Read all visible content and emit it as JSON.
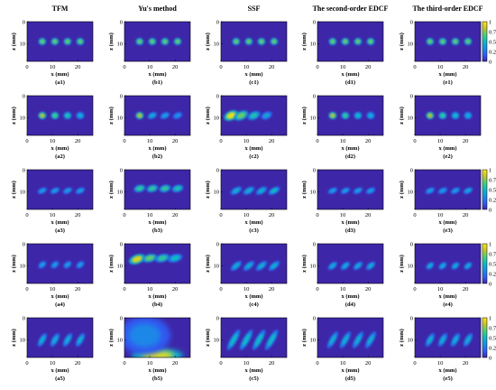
{
  "figure": {
    "column_titles": [
      "TFM",
      "Yu's method",
      "SSF",
      "The second-order EDCF",
      "The third-order EDCF"
    ],
    "panel_labels": [
      [
        "(a1)",
        "(b1)",
        "(c1)",
        "(d1)",
        "(e1)"
      ],
      [
        "(a2)",
        "(b2)",
        "(c2)",
        "(d2)",
        "(e2)"
      ],
      [
        "(a3)",
        "(b3)",
        "(c3)",
        "(d3)",
        "(e3)"
      ],
      [
        "(a4)",
        "(b4)",
        "(c4)",
        "(d4)",
        "(e4)"
      ],
      [
        "(a5)",
        "(b5)",
        "(c5)",
        "(d5)",
        "(e5)"
      ]
    ],
    "x_axis_label": "x (mm)",
    "y_axis_label": "z (mm)",
    "x_tick_labels": [
      "0",
      "10",
      "20"
    ],
    "y_tick_labels": [
      "0",
      "10"
    ],
    "colorbar_tick_labels": [
      "1",
      "0.75",
      "0.5",
      "0.25",
      "0"
    ],
    "colormap": [
      "#3e26a8",
      "#2f5ef9",
      "#1791e3",
      "#0cb9c4",
      "#47d17b",
      "#c5c428",
      "#f9e91f"
    ],
    "background_color": "#3e26a8"
  },
  "chart_data": {
    "type": "heatmap",
    "x_axis": {
      "label": "x (mm)",
      "range": [
        0,
        26
      ],
      "ticks": [
        0,
        10,
        20
      ]
    },
    "z_axis": {
      "label": "z (mm)",
      "range": [
        0,
        18
      ],
      "ticks": [
        0,
        10
      ],
      "reversed": true
    },
    "colorbar": {
      "range": [
        0,
        1
      ],
      "ticks": [
        0,
        0.25,
        0.5,
        0.75,
        1
      ]
    },
    "panels": [
      {
        "label": "(a1)",
        "spots": [
          {
            "x": 6,
            "z": 9,
            "i": 0.7,
            "w": 1.2,
            "h": 1.2,
            "tilt": 0
          },
          {
            "x": 11,
            "z": 9,
            "i": 0.7,
            "w": 1.2,
            "h": 1.2,
            "tilt": 0
          },
          {
            "x": 16,
            "z": 9,
            "i": 0.7,
            "w": 1.2,
            "h": 1.2,
            "tilt": 0
          },
          {
            "x": 21,
            "z": 9,
            "i": 0.7,
            "w": 1.2,
            "h": 1.2,
            "tilt": 0
          }
        ]
      },
      {
        "label": "(b1)",
        "spots": [
          {
            "x": 6,
            "z": 9,
            "i": 0.7,
            "w": 1.2,
            "h": 1.2,
            "tilt": 0
          },
          {
            "x": 11,
            "z": 9,
            "i": 0.7,
            "w": 1.2,
            "h": 1.2,
            "tilt": 0
          },
          {
            "x": 16,
            "z": 9,
            "i": 0.7,
            "w": 1.2,
            "h": 1.2,
            "tilt": 0
          },
          {
            "x": 21,
            "z": 9,
            "i": 0.7,
            "w": 1.2,
            "h": 1.2,
            "tilt": 0
          }
        ]
      },
      {
        "label": "(c1)",
        "spots": [
          {
            "x": 6,
            "z": 9,
            "i": 0.7,
            "w": 1.2,
            "h": 1.2,
            "tilt": 0
          },
          {
            "x": 11,
            "z": 9,
            "i": 0.7,
            "w": 1.2,
            "h": 1.2,
            "tilt": 0
          },
          {
            "x": 16,
            "z": 9,
            "i": 0.7,
            "w": 1.2,
            "h": 1.2,
            "tilt": 0
          },
          {
            "x": 21,
            "z": 9,
            "i": 0.7,
            "w": 1.2,
            "h": 1.2,
            "tilt": 0
          }
        ]
      },
      {
        "label": "(d1)",
        "spots": [
          {
            "x": 6,
            "z": 9,
            "i": 0.7,
            "w": 1.2,
            "h": 1.2,
            "tilt": 0
          },
          {
            "x": 11,
            "z": 9,
            "i": 0.7,
            "w": 1.2,
            "h": 1.2,
            "tilt": 0
          },
          {
            "x": 16,
            "z": 9,
            "i": 0.7,
            "w": 1.2,
            "h": 1.2,
            "tilt": 0
          },
          {
            "x": 21,
            "z": 9,
            "i": 0.7,
            "w": 1.2,
            "h": 1.2,
            "tilt": 0
          }
        ]
      },
      {
        "label": "(e1)",
        "spots": [
          {
            "x": 6,
            "z": 9,
            "i": 0.7,
            "w": 1.2,
            "h": 1.2,
            "tilt": 0
          },
          {
            "x": 11,
            "z": 9,
            "i": 0.7,
            "w": 1.2,
            "h": 1.2,
            "tilt": 0
          },
          {
            "x": 16,
            "z": 9,
            "i": 0.7,
            "w": 1.2,
            "h": 1.2,
            "tilt": 0
          },
          {
            "x": 21,
            "z": 9,
            "i": 0.7,
            "w": 1.2,
            "h": 1.2,
            "tilt": 0
          }
        ]
      },
      {
        "label": "(a2)",
        "spots": [
          {
            "x": 6,
            "z": 9,
            "i": 0.8,
            "w": 1.3,
            "h": 1.3,
            "tilt": 0
          },
          {
            "x": 11,
            "z": 9,
            "i": 0.65,
            "w": 1.3,
            "h": 1.3,
            "tilt": 0
          },
          {
            "x": 16,
            "z": 9,
            "i": 0.55,
            "w": 1.3,
            "h": 1.3,
            "tilt": 0
          },
          {
            "x": 21,
            "z": 9,
            "i": 0.45,
            "w": 1.3,
            "h": 1.3,
            "tilt": 0
          }
        ]
      },
      {
        "label": "(b2)",
        "spots": [
          {
            "x": 6,
            "z": 9,
            "i": 0.8,
            "w": 1.3,
            "h": 1.3,
            "tilt": 0
          },
          {
            "x": 11,
            "z": 9,
            "i": 0.45,
            "w": 1.8,
            "h": 0.9,
            "tilt": -25
          },
          {
            "x": 16,
            "z": 9,
            "i": 0.4,
            "w": 1.8,
            "h": 0.9,
            "tilt": -25
          },
          {
            "x": 21,
            "z": 9,
            "i": 0.35,
            "w": 1.8,
            "h": 0.9,
            "tilt": -25
          }
        ]
      },
      {
        "label": "(c2)",
        "spots": [
          {
            "x": 4,
            "z": 9,
            "i": 0.95,
            "w": 3,
            "h": 1.8,
            "tilt": -25
          },
          {
            "x": 8,
            "z": 9,
            "i": 0.7,
            "w": 3,
            "h": 1.6,
            "tilt": -25
          },
          {
            "x": 13,
            "z": 9,
            "i": 0.55,
            "w": 2.6,
            "h": 1.4,
            "tilt": -25
          },
          {
            "x": 18,
            "z": 9,
            "i": 0.4,
            "w": 2.2,
            "h": 1.2,
            "tilt": -25
          }
        ]
      },
      {
        "label": "(d2)",
        "spots": [
          {
            "x": 6,
            "z": 9,
            "i": 0.8,
            "w": 1.3,
            "h": 1.3,
            "tilt": 0
          },
          {
            "x": 11,
            "z": 9,
            "i": 0.6,
            "w": 1.3,
            "h": 1.3,
            "tilt": 0
          },
          {
            "x": 16,
            "z": 9,
            "i": 0.5,
            "w": 1.3,
            "h": 1.3,
            "tilt": 0
          },
          {
            "x": 21,
            "z": 9,
            "i": 0.45,
            "w": 1.3,
            "h": 1.3,
            "tilt": 0
          }
        ]
      },
      {
        "label": "(e2)",
        "spots": [
          {
            "x": 6,
            "z": 9,
            "i": 0.8,
            "w": 1.3,
            "h": 1.3,
            "tilt": 0
          },
          {
            "x": 11,
            "z": 9,
            "i": 0.6,
            "w": 1.3,
            "h": 1.3,
            "tilt": 0
          },
          {
            "x": 16,
            "z": 9,
            "i": 0.5,
            "w": 1.3,
            "h": 1.3,
            "tilt": 0
          },
          {
            "x": 21,
            "z": 9,
            "i": 0.45,
            "w": 1.3,
            "h": 1.3,
            "tilt": 0
          }
        ]
      },
      {
        "label": "(a3)",
        "spots": [
          {
            "x": 6,
            "z": 9.5,
            "i": 0.4,
            "w": 1.8,
            "h": 0.7,
            "tilt": -25
          },
          {
            "x": 11,
            "z": 9.5,
            "i": 0.4,
            "w": 1.8,
            "h": 0.7,
            "tilt": -25
          },
          {
            "x": 16,
            "z": 9.5,
            "i": 0.4,
            "w": 1.8,
            "h": 0.7,
            "tilt": -25
          },
          {
            "x": 21,
            "z": 9.5,
            "i": 0.4,
            "w": 1.8,
            "h": 0.7,
            "tilt": -25
          }
        ]
      },
      {
        "label": "(b3)",
        "spots": [
          {
            "x": 6,
            "z": 8.5,
            "i": 0.6,
            "w": 2.2,
            "h": 1.2,
            "tilt": -15
          },
          {
            "x": 11,
            "z": 8.5,
            "i": 0.6,
            "w": 2.2,
            "h": 1.2,
            "tilt": -15
          },
          {
            "x": 16,
            "z": 8.5,
            "i": 0.6,
            "w": 2.2,
            "h": 1.2,
            "tilt": -15
          },
          {
            "x": 21,
            "z": 8.5,
            "i": 0.55,
            "w": 2.2,
            "h": 1.2,
            "tilt": -15
          }
        ]
      },
      {
        "label": "(c3)",
        "spots": [
          {
            "x": 6,
            "z": 9.5,
            "i": 0.45,
            "w": 2.4,
            "h": 0.9,
            "tilt": -30
          },
          {
            "x": 11,
            "z": 9.5,
            "i": 0.45,
            "w": 2.4,
            "h": 0.9,
            "tilt": -30
          },
          {
            "x": 16,
            "z": 9.5,
            "i": 0.45,
            "w": 2.4,
            "h": 0.9,
            "tilt": -30
          },
          {
            "x": 21,
            "z": 9.5,
            "i": 0.5,
            "w": 2.4,
            "h": 0.9,
            "tilt": -30
          }
        ]
      },
      {
        "label": "(d3)",
        "spots": [
          {
            "x": 6,
            "z": 9.5,
            "i": 0.4,
            "w": 1.8,
            "h": 0.7,
            "tilt": -25
          },
          {
            "x": 11,
            "z": 9.5,
            "i": 0.4,
            "w": 1.8,
            "h": 0.7,
            "tilt": -25
          },
          {
            "x": 16,
            "z": 9.5,
            "i": 0.4,
            "w": 1.8,
            "h": 0.7,
            "tilt": -25
          },
          {
            "x": 21,
            "z": 9.5,
            "i": 0.4,
            "w": 1.8,
            "h": 0.7,
            "tilt": -25
          }
        ]
      },
      {
        "label": "(e3)",
        "spots": [
          {
            "x": 6,
            "z": 9.5,
            "i": 0.4,
            "w": 1.8,
            "h": 0.7,
            "tilt": -25
          },
          {
            "x": 11,
            "z": 9.5,
            "i": 0.4,
            "w": 1.8,
            "h": 0.7,
            "tilt": -25
          },
          {
            "x": 16,
            "z": 9.5,
            "i": 0.4,
            "w": 1.8,
            "h": 0.7,
            "tilt": -25
          },
          {
            "x": 21,
            "z": 9.5,
            "i": 0.45,
            "w": 1.8,
            "h": 0.7,
            "tilt": -25
          }
        ]
      },
      {
        "label": "(a4)",
        "spots": [
          {
            "x": 6,
            "z": 9.5,
            "i": 0.4,
            "w": 1.6,
            "h": 0.8,
            "tilt": -40
          },
          {
            "x": 11,
            "z": 9.5,
            "i": 0.4,
            "w": 1.6,
            "h": 0.8,
            "tilt": -40
          },
          {
            "x": 16,
            "z": 9.5,
            "i": 0.4,
            "w": 1.6,
            "h": 0.8,
            "tilt": -40
          },
          {
            "x": 21,
            "z": 9.5,
            "i": 0.4,
            "w": 1.6,
            "h": 0.8,
            "tilt": -40
          }
        ]
      },
      {
        "label": "(b4)",
        "spots": [
          {
            "x": 5,
            "z": 7,
            "i": 0.9,
            "w": 3.5,
            "h": 1.8,
            "tilt": -20
          },
          {
            "x": 10,
            "z": 6.5,
            "i": 0.7,
            "w": 3,
            "h": 1.4,
            "tilt": -15
          },
          {
            "x": 15,
            "z": 6.5,
            "i": 0.6,
            "w": 3,
            "h": 1.4,
            "tilt": -15
          },
          {
            "x": 20,
            "z": 6.5,
            "i": 0.5,
            "w": 3,
            "h": 1.4,
            "tilt": -15
          }
        ]
      },
      {
        "label": "(c4)",
        "spots": [
          {
            "x": 6,
            "z": 10,
            "i": 0.45,
            "w": 2.6,
            "h": 0.9,
            "tilt": -40
          },
          {
            "x": 11,
            "z": 10,
            "i": 0.45,
            "w": 2.6,
            "h": 0.9,
            "tilt": -40
          },
          {
            "x": 16,
            "z": 10,
            "i": 0.45,
            "w": 2.6,
            "h": 0.9,
            "tilt": -40
          },
          {
            "x": 21,
            "z": 10,
            "i": 0.45,
            "w": 2.6,
            "h": 0.9,
            "tilt": -40
          }
        ]
      },
      {
        "label": "(d4)",
        "spots": [
          {
            "x": 6,
            "z": 10,
            "i": 0.45,
            "w": 2,
            "h": 0.8,
            "tilt": -40
          },
          {
            "x": 11,
            "z": 10,
            "i": 0.45,
            "w": 2,
            "h": 0.8,
            "tilt": -40
          },
          {
            "x": 16,
            "z": 10,
            "i": 0.45,
            "w": 2,
            "h": 0.8,
            "tilt": -40
          },
          {
            "x": 21,
            "z": 10,
            "i": 0.45,
            "w": 2,
            "h": 0.8,
            "tilt": -40
          }
        ]
      },
      {
        "label": "(e4)",
        "spots": [
          {
            "x": 6,
            "z": 10,
            "i": 0.45,
            "w": 1.6,
            "h": 0.8,
            "tilt": -40
          },
          {
            "x": 11,
            "z": 10,
            "i": 0.45,
            "w": 1.6,
            "h": 0.8,
            "tilt": -40
          },
          {
            "x": 16,
            "z": 10,
            "i": 0.45,
            "w": 1.6,
            "h": 0.8,
            "tilt": -40
          },
          {
            "x": 21,
            "z": 10,
            "i": 0.45,
            "w": 1.6,
            "h": 0.8,
            "tilt": -40
          }
        ]
      },
      {
        "label": "(a5)",
        "spots": [
          {
            "x": 6,
            "z": 10,
            "i": 0.45,
            "w": 3,
            "h": 0.9,
            "tilt": -60
          },
          {
            "x": 11,
            "z": 10,
            "i": 0.45,
            "w": 3,
            "h": 0.9,
            "tilt": -60
          },
          {
            "x": 16,
            "z": 10,
            "i": 0.45,
            "w": 3,
            "h": 0.9,
            "tilt": -60
          },
          {
            "x": 21,
            "z": 10,
            "i": 0.45,
            "w": 3,
            "h": 0.9,
            "tilt": -60
          }
        ]
      },
      {
        "label": "(b5)",
        "spots": [
          {
            "x": 13,
            "z": 17,
            "i": 0.95,
            "w": 12,
            "h": 3,
            "tilt": 0
          },
          {
            "x": 8,
            "z": 8,
            "i": 0.3,
            "w": 12,
            "h": 10,
            "tilt": 0
          }
        ]
      },
      {
        "label": "(c5)",
        "spots": [
          {
            "x": 5,
            "z": 10,
            "i": 0.5,
            "w": 5,
            "h": 1,
            "tilt": -60
          },
          {
            "x": 10,
            "z": 10,
            "i": 0.5,
            "w": 5,
            "h": 1,
            "tilt": -60
          },
          {
            "x": 15,
            "z": 10,
            "i": 0.5,
            "w": 5,
            "h": 1,
            "tilt": -60
          },
          {
            "x": 20,
            "z": 10,
            "i": 0.5,
            "w": 5,
            "h": 1,
            "tilt": -60
          }
        ]
      },
      {
        "label": "(d5)",
        "spots": [
          {
            "x": 6,
            "z": 10,
            "i": 0.45,
            "w": 4,
            "h": 0.9,
            "tilt": -60
          },
          {
            "x": 11,
            "z": 10,
            "i": 0.45,
            "w": 4,
            "h": 0.9,
            "tilt": -60
          },
          {
            "x": 16,
            "z": 10,
            "i": 0.45,
            "w": 4,
            "h": 0.9,
            "tilt": -60
          },
          {
            "x": 21,
            "z": 10,
            "i": 0.45,
            "w": 4,
            "h": 0.9,
            "tilt": -60
          }
        ]
      },
      {
        "label": "(e5)",
        "spots": [
          {
            "x": 6,
            "z": 10,
            "i": 0.45,
            "w": 3,
            "h": 0.9,
            "tilt": -60
          },
          {
            "x": 11,
            "z": 10,
            "i": 0.45,
            "w": 3,
            "h": 0.9,
            "tilt": -60
          },
          {
            "x": 16,
            "z": 10,
            "i": 0.45,
            "w": 3,
            "h": 0.9,
            "tilt": -60
          },
          {
            "x": 21,
            "z": 10,
            "i": 0.45,
            "w": 3,
            "h": 0.9,
            "tilt": -60
          }
        ]
      }
    ]
  }
}
